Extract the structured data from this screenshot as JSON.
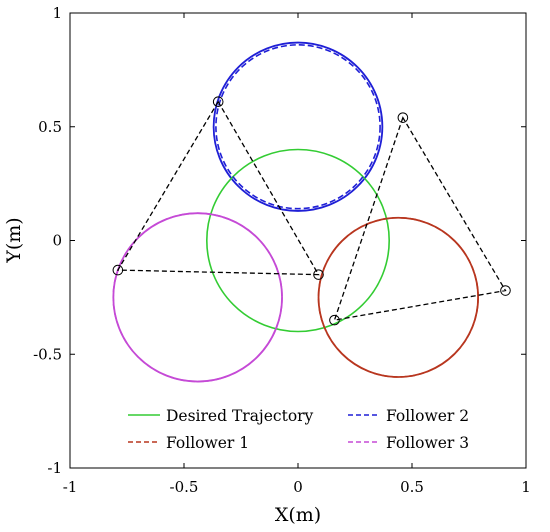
{
  "chart_data": {
    "type": "line",
    "xlabel": "X(m)",
    "ylabel": "Y(m)",
    "xlim": [
      -1,
      1
    ],
    "ylim": [
      -1,
      1
    ],
    "xticks": [
      "-1",
      "-0.5",
      "0",
      "0.5",
      "1"
    ],
    "yticks": [
      "-1",
      "-0.5",
      "0",
      "0.5",
      "1"
    ],
    "grid": false,
    "legend_position": "bottom",
    "legend": [
      {
        "label": "Desired Trajectory",
        "color": "#33cc33",
        "style": "solid"
      },
      {
        "label": "Follower 2",
        "color": "#1f1fd6",
        "style": "dashed"
      },
      {
        "label": "Follower 1",
        "color": "#b8361f",
        "style": "dashed"
      },
      {
        "label": "Follower 3",
        "color": "#c54ad6",
        "style": "dashed"
      }
    ],
    "series": [
      {
        "name": "Desired Trajectory",
        "shape": "circle",
        "center": [
          0,
          0
        ],
        "radius": 0.4,
        "color": "#33cc33",
        "style": "solid"
      },
      {
        "name": "Follower 1",
        "shape": "circle",
        "center": [
          0.44,
          -0.25
        ],
        "radius": 0.35,
        "color": "#b8361f",
        "style": "dashed"
      },
      {
        "name": "Follower 2",
        "shape": "circle",
        "center": [
          0,
          0.5
        ],
        "radius": 0.36,
        "color": "#1f1fd6",
        "style": "dashed"
      },
      {
        "name": "Follower 3",
        "shape": "circle",
        "center": [
          -0.44,
          -0.25
        ],
        "radius": 0.37,
        "color": "#c54ad6",
        "style": "dashed"
      }
    ],
    "reference_circles": [
      {
        "center": [
          0.44,
          -0.25
        ],
        "radius": 0.35,
        "color": "#b8361f"
      },
      {
        "center": [
          0,
          0.5
        ],
        "radius": 0.37,
        "color": "#1f1fd6"
      },
      {
        "center": [
          -0.44,
          -0.25
        ],
        "radius": 0.37,
        "color": "#c54ad6"
      }
    ],
    "formation_markers": [
      {
        "group": "a",
        "points": [
          [
            -0.35,
            0.61
          ],
          [
            -0.79,
            -0.13
          ],
          [
            0.09,
            -0.15
          ]
        ]
      },
      {
        "group": "b",
        "points": [
          [
            0.46,
            0.54
          ],
          [
            0.16,
            -0.35
          ],
          [
            0.91,
            -0.22
          ]
        ]
      }
    ]
  }
}
